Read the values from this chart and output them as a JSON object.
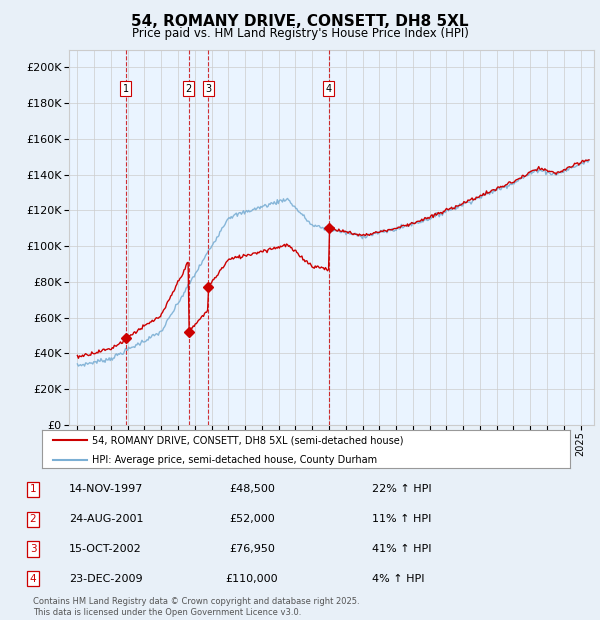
{
  "title": "54, ROMANY DRIVE, CONSETT, DH8 5XL",
  "subtitle": "Price paid vs. HM Land Registry's House Price Index (HPI)",
  "ylim": [
    0,
    210000
  ],
  "transactions": [
    {
      "num": 1,
      "date": "14-NOV-1997",
      "year": 1997.87,
      "price": 48500,
      "pct": "22% ↑ HPI"
    },
    {
      "num": 2,
      "date": "24-AUG-2001",
      "year": 2001.64,
      "price": 52000,
      "pct": "11% ↑ HPI"
    },
    {
      "num": 3,
      "date": "15-OCT-2002",
      "year": 2002.79,
      "price": 76950,
      "pct": "41% ↑ HPI"
    },
    {
      "num": 4,
      "date": "23-DEC-2009",
      "year": 2009.98,
      "price": 110000,
      "pct": "4% ↑ HPI"
    }
  ],
  "legend_red": "54, ROMANY DRIVE, CONSETT, DH8 5XL (semi-detached house)",
  "legend_blue": "HPI: Average price, semi-detached house, County Durham",
  "footer": "Contains HM Land Registry data © Crown copyright and database right 2025.\nThis data is licensed under the Open Government Licence v3.0.",
  "bg_color": "#e8f0f8",
  "plot_bg": "#ffffff",
  "shade_color": "#ddeeff",
  "grid_color": "#cccccc",
  "red_color": "#cc0000",
  "blue_color": "#7bafd4"
}
